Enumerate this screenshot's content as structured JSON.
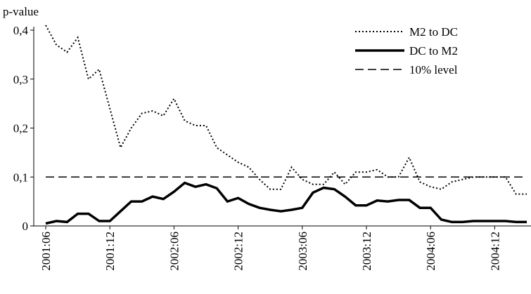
{
  "chart_data": {
    "type": "line",
    "y_label": "p-value",
    "categories": [
      "2001:06",
      null,
      null,
      null,
      null,
      null,
      "2001:12",
      null,
      null,
      null,
      null,
      null,
      "2002:06",
      null,
      null,
      null,
      null,
      null,
      "2002:12",
      null,
      null,
      null,
      null,
      null,
      "2003:06",
      null,
      null,
      null,
      null,
      null,
      "2003:12",
      null,
      null,
      null,
      null,
      null,
      "2004:06",
      null,
      null,
      null,
      null,
      null,
      "2004:12",
      null,
      null,
      null
    ],
    "series": [
      {
        "name": "M2 to DC",
        "color": "#000000",
        "style": "dotted",
        "values": [
          0.41,
          0.37,
          0.355,
          0.385,
          0.3,
          0.32,
          0.24,
          0.16,
          0.2,
          0.23,
          0.235,
          0.225,
          0.26,
          0.215,
          0.205,
          0.205,
          0.16,
          0.145,
          0.13,
          0.12,
          0.095,
          0.075,
          0.075,
          0.12,
          0.095,
          0.085,
          0.085,
          0.11,
          0.085,
          0.11,
          0.11,
          0.115,
          0.1,
          0.1,
          0.14,
          0.09,
          0.08,
          0.075,
          0.09,
          0.095,
          0.1,
          0.1,
          0.1,
          0.1,
          0.065,
          0.065
        ]
      },
      {
        "name": "DC to M2",
        "color": "#000000",
        "style": "solid",
        "values": [
          0.005,
          0.01,
          0.008,
          0.025,
          0.025,
          0.01,
          0.01,
          0.03,
          0.05,
          0.05,
          0.06,
          0.055,
          0.07,
          0.088,
          0.08,
          0.085,
          0.077,
          0.05,
          0.057,
          0.045,
          0.037,
          0.033,
          0.03,
          0.033,
          0.037,
          0.068,
          0.078,
          0.075,
          0.06,
          0.042,
          0.042,
          0.052,
          0.05,
          0.053,
          0.053,
          0.037,
          0.037,
          0.013,
          0.008,
          0.008,
          0.01,
          0.01,
          0.01,
          0.01,
          0.008,
          0.008
        ]
      },
      {
        "name": "10% level",
        "color": "#000000",
        "style": "dashed",
        "values": [
          0.1,
          0.1,
          0.1,
          0.1,
          0.1,
          0.1,
          0.1,
          0.1,
          0.1,
          0.1,
          0.1,
          0.1,
          0.1,
          0.1,
          0.1,
          0.1,
          0.1,
          0.1,
          0.1,
          0.1,
          0.1,
          0.1,
          0.1,
          0.1,
          0.1,
          0.1,
          0.1,
          0.1,
          0.1,
          0.1,
          0.1,
          0.1,
          0.1,
          0.1,
          0.1,
          0.1,
          0.1,
          0.1,
          0.1,
          0.1,
          0.1,
          0.1,
          0.1,
          0.1,
          0.1,
          0.1
        ]
      }
    ],
    "ylim": [
      0,
      0.4
    ],
    "yticks": [
      0,
      {
        "value": 0.1,
        "label": "0,1"
      },
      {
        "value": 0.2,
        "label": "0,2"
      },
      {
        "value": 0.3,
        "label": "0,3"
      },
      {
        "value": 0.4,
        "label": "0,4"
      }
    ],
    "legend": "top-right"
  }
}
